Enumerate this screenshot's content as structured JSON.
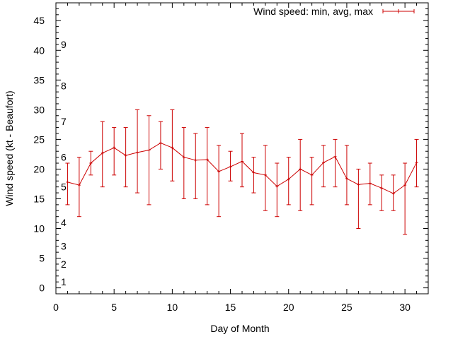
{
  "chart_data": {
    "type": "line",
    "xlabel": "Day of Month",
    "ylabel": "Wind speed (kt - Beaufort)",
    "xlim": [
      0,
      32
    ],
    "ylim": [
      -1,
      48
    ],
    "x_ticks": [
      0,
      5,
      10,
      15,
      20,
      25,
      30
    ],
    "y_ticks": [
      0,
      5,
      10,
      15,
      20,
      25,
      30,
      35,
      40,
      45
    ],
    "grid": false,
    "legend_position": "top-right",
    "series_color": "#cc0000",
    "series": [
      {
        "name": "Wind speed: min, avg, max",
        "x": [
          1,
          2,
          3,
          4,
          5,
          6,
          7,
          8,
          9,
          10,
          11,
          12,
          13,
          14,
          15,
          16,
          17,
          18,
          19,
          20,
          21,
          22,
          23,
          24,
          25,
          26,
          27,
          28,
          29,
          30,
          31
        ],
        "avg": [
          17.8,
          17.3,
          21.0,
          22.7,
          23.6,
          22.3,
          22.8,
          23.2,
          24.4,
          23.6,
          22.0,
          21.5,
          21.6,
          19.6,
          20.4,
          21.3,
          19.4,
          19.0,
          17.1,
          18.3,
          20.0,
          19.0,
          21.1,
          22.1,
          18.4,
          17.4,
          17.6,
          16.8,
          15.9,
          17.3,
          21.1
        ],
        "min": [
          14,
          12,
          19,
          17,
          19,
          17,
          16,
          14,
          20,
          18,
          15,
          15,
          14,
          12,
          18,
          17,
          16,
          13,
          12,
          14,
          13,
          14,
          17,
          17,
          14,
          10,
          14,
          13,
          13,
          9,
          17
        ],
        "max": [
          21,
          22,
          23,
          28,
          27,
          27,
          30,
          29,
          28,
          30,
          27,
          26,
          27,
          24,
          23,
          26,
          22,
          24,
          21,
          22,
          25,
          22,
          24,
          25,
          24,
          20,
          21,
          19,
          19,
          21,
          25
        ]
      }
    ],
    "beaufort_labels": [
      {
        "label": "1",
        "value": 1
      },
      {
        "label": "2",
        "value": 4
      },
      {
        "label": "3",
        "value": 7
      },
      {
        "label": "4",
        "value": 11
      },
      {
        "label": "5",
        "value": 17
      },
      {
        "label": "6",
        "value": 22
      },
      {
        "label": "7",
        "value": 28
      },
      {
        "label": "8",
        "value": 34
      },
      {
        "label": "9",
        "value": 41
      }
    ]
  }
}
